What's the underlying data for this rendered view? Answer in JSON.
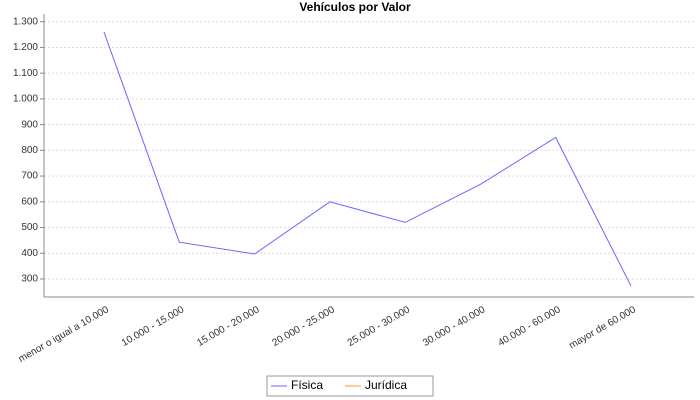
{
  "chart_data": {
    "type": "line",
    "title": "Vehículos por Valor",
    "categories": [
      "menor o igual a 10.000",
      "10.000 - 15.000",
      "15.000 - 20.000",
      "20.000 - 25.000",
      "25.000 - 30.000",
      "30.000 - 40.000",
      "40.000 - 60.000",
      "mayor de 60.000"
    ],
    "series": [
      {
        "name": "Física",
        "color": "#6666ff",
        "values": [
          1260,
          443,
          397,
          600,
          520,
          668,
          850,
          273
        ]
      },
      {
        "name": "Jurídica",
        "color": "#ff9933",
        "values": [
          null,
          null,
          null,
          null,
          null,
          null,
          null,
          null
        ]
      }
    ],
    "ylim": [
      230,
      1330
    ],
    "yticks": [
      300,
      400,
      500,
      600,
      700,
      800,
      900,
      {
        "value": 1000,
        "label": "1.000"
      },
      {
        "value": 1100,
        "label": "1.100"
      },
      {
        "value": 1200,
        "label": "1.200"
      },
      {
        "value": 1300,
        "label": "1.300"
      }
    ],
    "grid": true,
    "legend": "bottom"
  }
}
